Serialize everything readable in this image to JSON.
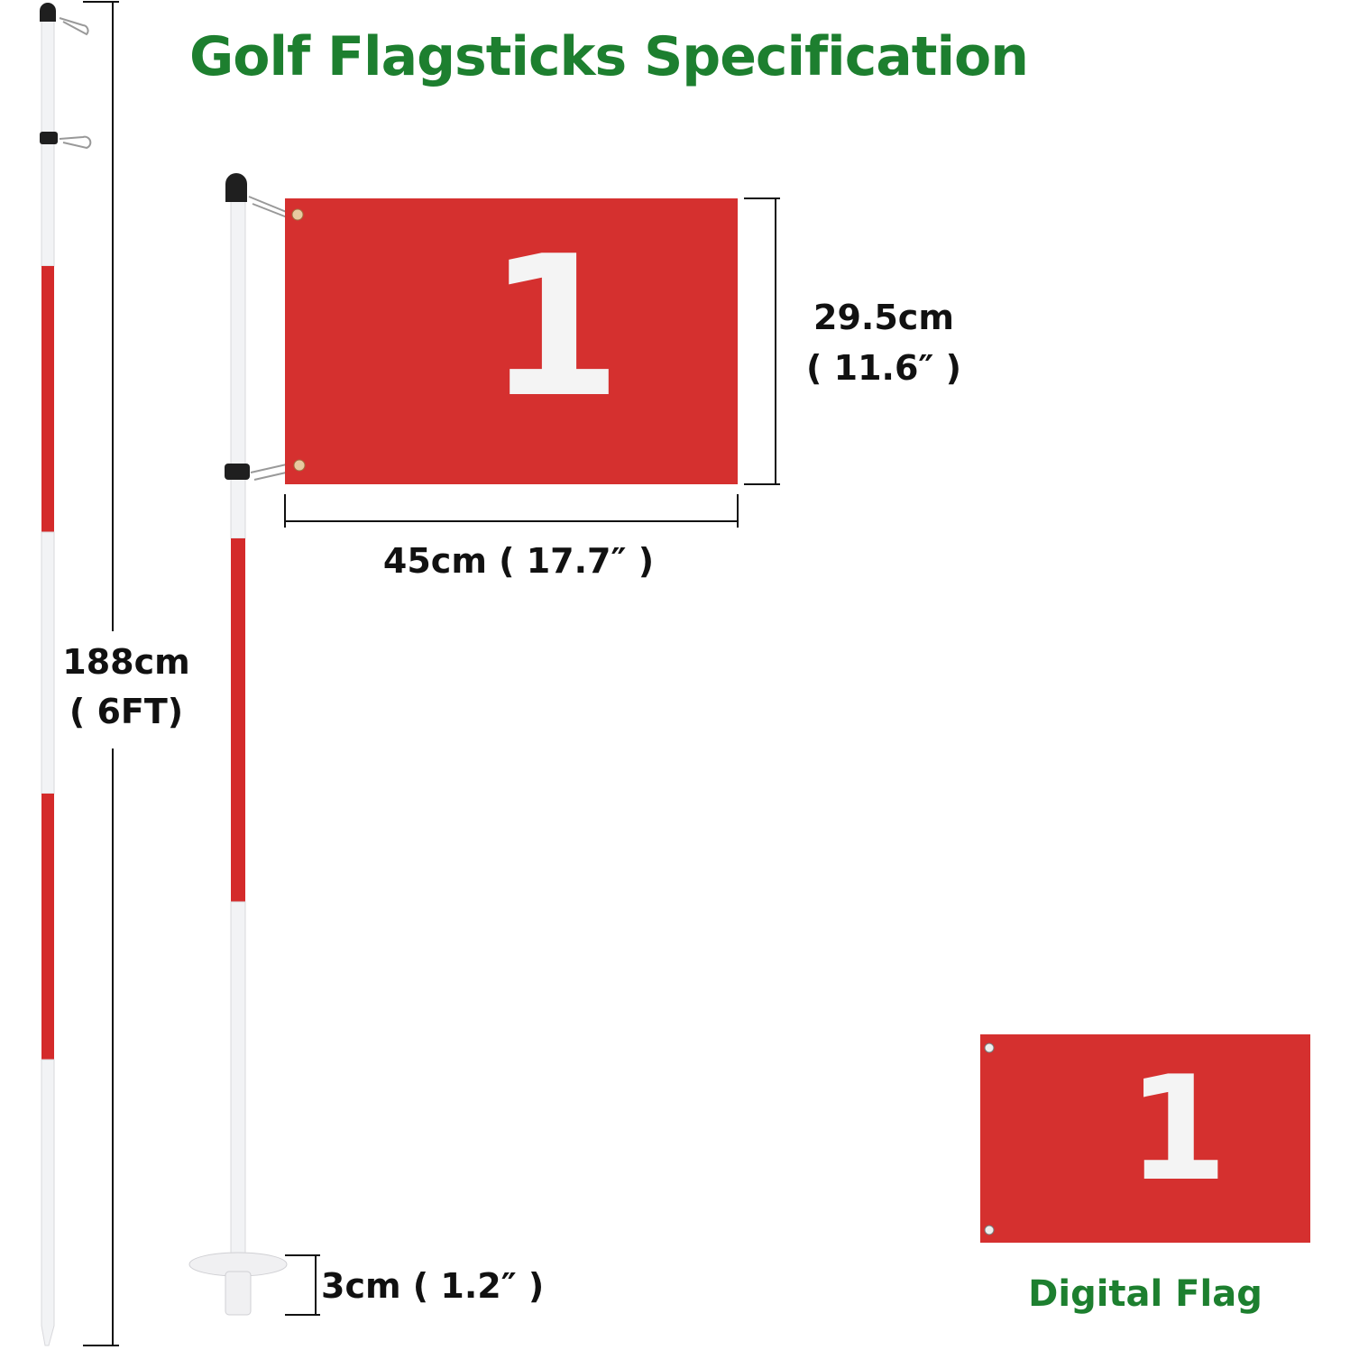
{
  "title": "Golf Flagsticks Specification",
  "colors": {
    "title_green": "#1d7f2f",
    "flag_red": "#d5302f",
    "pole_white": "#f2f3f5",
    "pole_red": "#d42a2a",
    "cap_black": "#1f1f1f",
    "dimension_line": "#111111"
  },
  "dimensions": {
    "pole_height_cm": "188cm",
    "pole_height_ft": "( 6FT)",
    "flag_height_cm": "29.5cm",
    "flag_height_in": "( 11.6″ )",
    "flag_width": "45cm ( 17.7″ )",
    "cup_depth": "3cm ( 1.2″ )"
  },
  "flag": {
    "number": "1"
  },
  "digital_flag": {
    "number": "1",
    "label": "Digital Flag"
  }
}
